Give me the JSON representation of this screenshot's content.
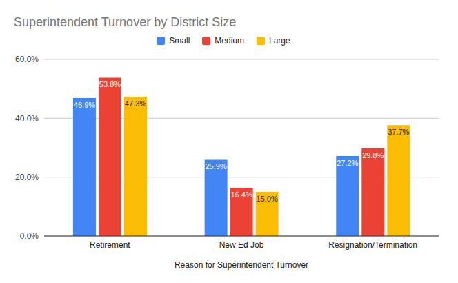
{
  "chart_data": {
    "type": "bar",
    "title": "Superintendent Turnover by District Size",
    "x_label": "Reason for Superintendent Turnover",
    "categories": [
      "Retirement",
      "New Ed Job",
      "Resignation/Termination"
    ],
    "series": [
      {
        "name": "Small",
        "color": "#4285f4",
        "values": [
          46.9,
          25.9,
          27.2
        ],
        "value_labels": [
          "46.9%",
          "25.9%",
          "27.2%"
        ]
      },
      {
        "name": "Medium",
        "color": "#ea4335",
        "values": [
          53.8,
          16.4,
          29.8
        ],
        "value_labels": [
          "53.8%",
          "16.4%",
          "29.8%"
        ]
      },
      {
        "name": "Large",
        "color": "#fbbc04",
        "values": [
          47.3,
          15.0,
          37.7
        ],
        "value_labels": [
          "47.3%",
          "15.0%",
          "37.7%"
        ]
      }
    ],
    "ylim": [
      0,
      60
    ],
    "yticks": [
      {
        "value": 0,
        "label": "0.0%"
      },
      {
        "value": 20,
        "label": "20.0%"
      },
      {
        "value": 40,
        "label": "40.0%"
      },
      {
        "value": 60,
        "label": "60.0%"
      }
    ],
    "grid": true,
    "legend": "top",
    "data_labels": true
  }
}
